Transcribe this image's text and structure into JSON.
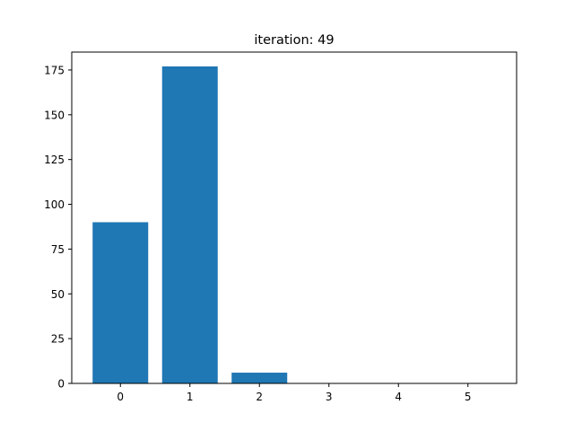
{
  "chart_data": {
    "type": "bar",
    "title": "iteration: 49",
    "xlabel": "",
    "ylabel": "",
    "categories": [
      "0",
      "1",
      "2",
      "3",
      "4",
      "5"
    ],
    "x": [
      0,
      1,
      2,
      3,
      4,
      5
    ],
    "values": [
      90,
      177,
      6,
      0,
      0,
      0
    ],
    "xlim": [
      -0.7,
      5.7
    ],
    "ylim": [
      0,
      185
    ],
    "yticks": [
      0,
      25,
      50,
      75,
      100,
      125,
      150,
      175
    ],
    "xticks": [
      0,
      1,
      2,
      3,
      4,
      5
    ],
    "bar_color": "#1f77b4",
    "grid": false,
    "legend": "none"
  }
}
